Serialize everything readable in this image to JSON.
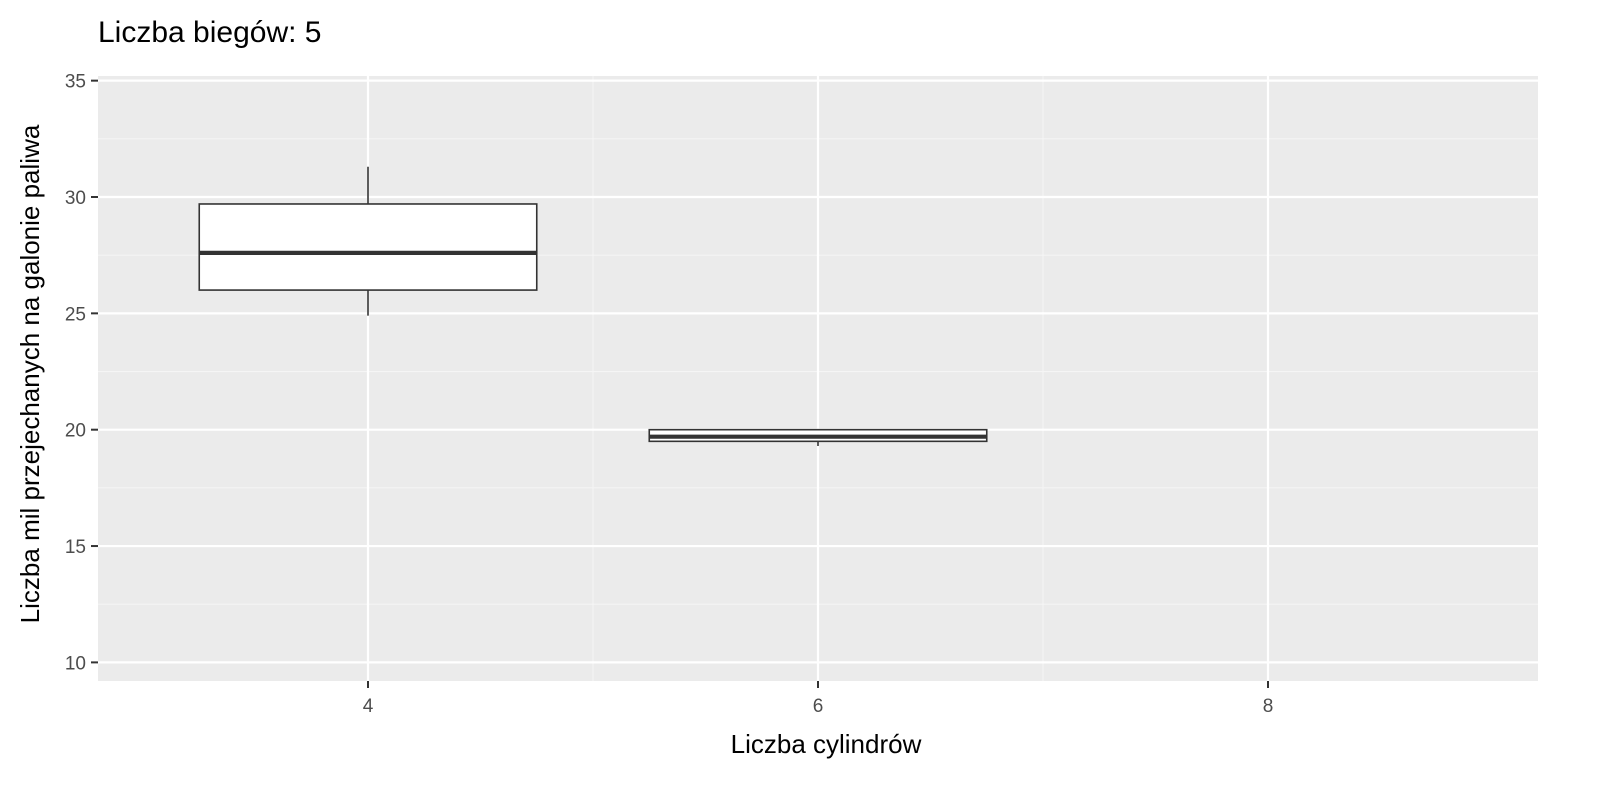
{
  "chart_data": {
    "type": "boxplot",
    "title": "Liczba biegów: 5",
    "xlabel": "Liczba cylindrów",
    "ylabel": "Liczba mil przejechanych na galonie paliwa",
    "x_categories": [
      "4",
      "6",
      "8"
    ],
    "x_values": [
      4,
      6,
      8
    ],
    "xlim": [
      2.8,
      9.2
    ],
    "ylim": [
      9.2,
      35.2
    ],
    "y_ticks": [
      10,
      15,
      20,
      25,
      30,
      35
    ],
    "boxes": [
      {
        "x": 4,
        "min": 24.9,
        "q1": 26.0,
        "median": 27.6,
        "q3": 29.7,
        "max": 31.3
      },
      {
        "x": 6,
        "min": 19.3,
        "q1": 19.5,
        "median": 19.7,
        "q3": 20.0,
        "max": 20.0
      }
    ],
    "box_width": 1.5,
    "grid": true,
    "legend": "none"
  },
  "colors": {
    "panel_background": "#ebebeb",
    "grid_major": "#ffffff",
    "grid_minor": "#f5f5f5",
    "box_fill": "#ffffff",
    "box_stroke": "#333333",
    "tick_mark": "#333333"
  }
}
